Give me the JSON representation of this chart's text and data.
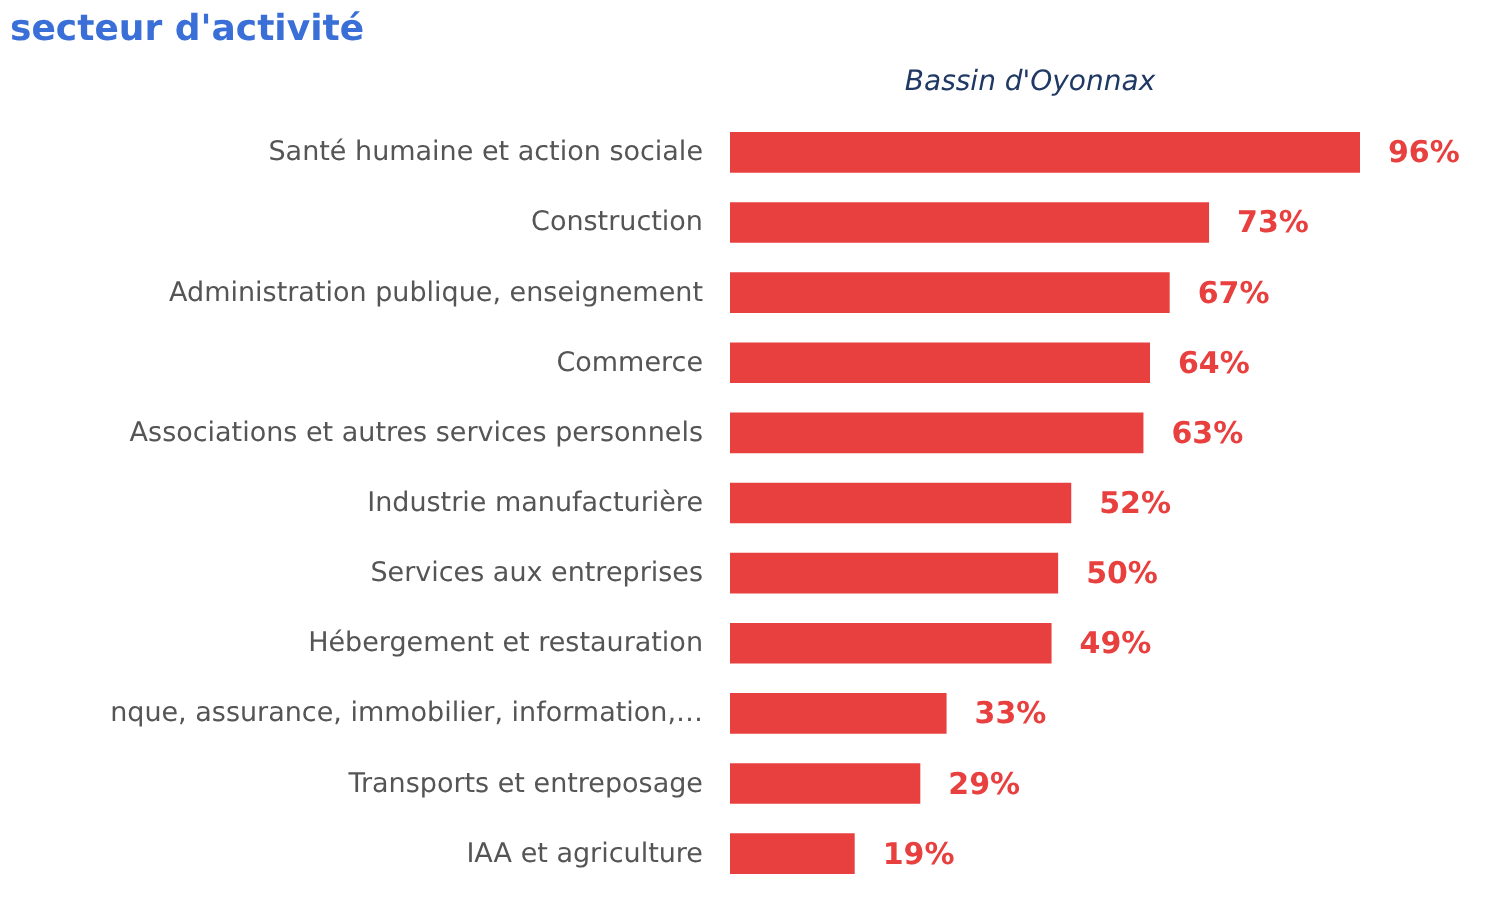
{
  "chart_data": {
    "type": "bar",
    "orientation": "horizontal",
    "title": "secteur d'activité",
    "subtitle": "Bassin d'Oyonnax",
    "categories": [
      "Santé humaine et action sociale",
      "Construction",
      "Administration publique, enseignement",
      "Commerce",
      "Associations et autres services personnels",
      "Industrie manufacturière",
      "Services aux entreprises",
      "Hébergement et restauration",
      "nque, assurance, immobilier, information,…",
      "Transports et entreposage",
      "IAA et agriculture"
    ],
    "series": [
      {
        "color": "#e8403f",
        "values": [
          96,
          73,
          67,
          64,
          63,
          52,
          50,
          49,
          33,
          29,
          19
        ],
        "value_labels": [
          "96%",
          "73%",
          "67%",
          "64%",
          "63%",
          "52%",
          "50%",
          "49%",
          "33%",
          "29%",
          "19%"
        ]
      }
    ],
    "tick_labels": "y",
    "grid": false,
    "legend": false
  }
}
